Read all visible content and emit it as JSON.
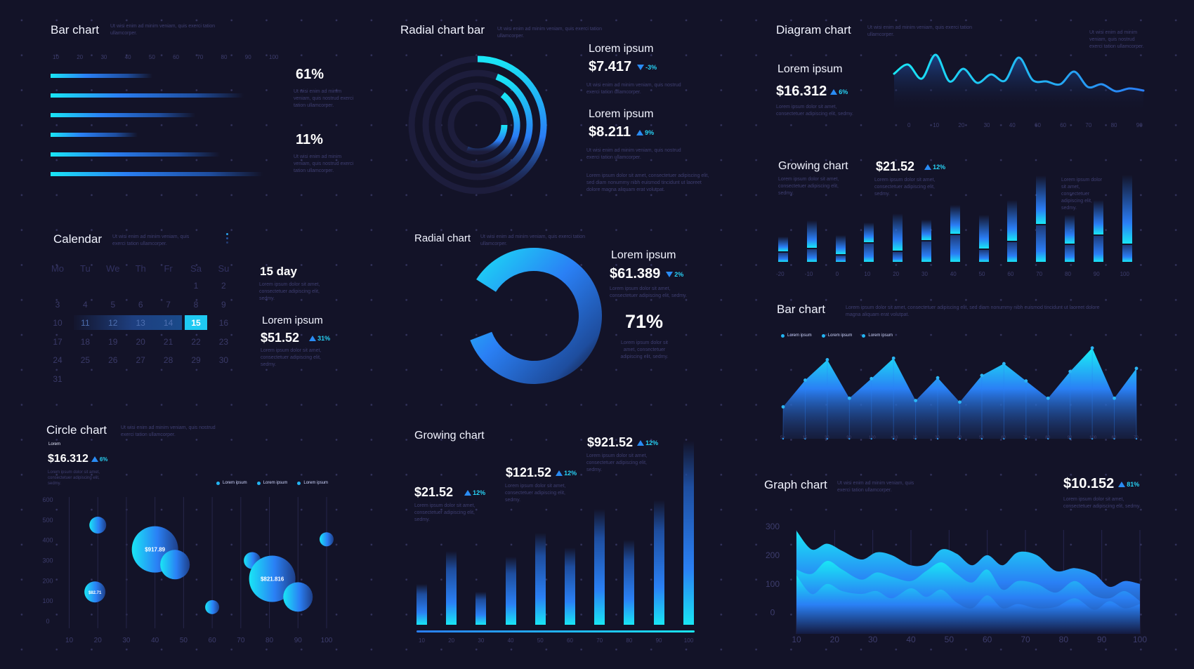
{
  "palette": {
    "background": "#131328",
    "accent_cyan": "#19e6f5",
    "accent_blue": "#2a7df5",
    "muted_text": "#3f3f72",
    "axis_text": "#3d3d6d"
  },
  "panels": {
    "bar_chart_left": {
      "title": "Bar chart",
      "description": "Ut wisi enim ad minim veniam, quis exerci tation ullamcorper.",
      "stat1": {
        "value": "61%",
        "description": "Ut wisi enim ad minim veniam, quis nostrud exerci tation ullamcorper."
      },
      "stat2": {
        "value": "11%",
        "description": "Ut wisi enim ad minim veniam, quis nostrud exerci tation ullamcorper."
      }
    },
    "radial_chart_bar": {
      "title": "Radial chart bar",
      "description": "Ut wisi enim ad minim veniam, quis exerci tation ullamcorper.",
      "stat1": {
        "label": "Lorem ipsum",
        "value": "$7.417",
        "delta": "-3%",
        "direction": "down",
        "description": "Ut wisi enim ad minim veniam, quis nostrud exerci tation ullamcorper."
      },
      "stat2": {
        "label": "Lorem ipsum",
        "value": "$8.211",
        "delta": "9%",
        "direction": "up",
        "description": "Ut wisi enim ad minim veniam, quis nostrud exerci tation ullamcorper."
      },
      "footer": "Lorem ipsum dolor sit amet, consectetuer adipiscing elit, sed diam nonummy nibh euismod tincidunt ut laoreet dolore magna aliquam erat volutpat."
    },
    "diagram_chart": {
      "title": "Diagram chart",
      "description": "Ut wisi enim ad minim veniam, quis exerci tation ullamcorper.",
      "side_note": "Ut wisi enim ad minim veniam, quis nostrud exerci tation ullamcorper.",
      "stat": {
        "label": "Lorem ipsum",
        "value": "$16.312",
        "delta": "6%",
        "direction": "up",
        "description": "Lorem ipsum dolor sit amet, consectetuer adipiscing elit, sedmy."
      }
    },
    "calendar": {
      "title": "Calendar",
      "description": "Ut wisi enim ad minim veniam, quis exerci tation ullamcorper.",
      "weekdays": [
        "Mo",
        "Tu",
        "We",
        "Th",
        "Fr",
        "Sa",
        "Su"
      ],
      "weeks": [
        [
          "",
          "",
          "",
          "",
          "",
          "1",
          "2"
        ],
        [
          "3",
          "4",
          "5",
          "6",
          "7",
          "8",
          "9"
        ],
        [
          "10",
          "11",
          "12",
          "13",
          "14",
          "15",
          "16"
        ],
        [
          "17",
          "18",
          "19",
          "20",
          "21",
          "22",
          "23"
        ],
        [
          "24",
          "25",
          "26",
          "27",
          "28",
          "29",
          "30"
        ],
        [
          "31",
          "",
          "",
          "",
          "",
          "",
          ""
        ]
      ],
      "range_start": "11",
      "selected_day": "15",
      "day_stat": {
        "value": "15 day",
        "description": "Lorem ipsum dolor sit amet, consectetuer adipiscing elit, sedmy."
      },
      "stat": {
        "label": "Lorem ipsum",
        "value": "$51.52",
        "delta": "31%",
        "direction": "up",
        "description": "Lorem ipsum dolor sit amet, consectetuer adipiscing elit, sedmy."
      }
    },
    "radial_chart": {
      "title": "Radial chart",
      "description": "Ut wisi enim ad minim veniam, quis exerci tation ullamcorper.",
      "stat": {
        "label": "Lorem ipsum",
        "value": "$61.389",
        "delta": "2%",
        "direction": "down",
        "description": "Lorem ipsum dolor sit amet, consectetuer adipiscing elit, sedmy."
      },
      "percent": {
        "value": "71%",
        "description": "Lorem ipsum dolor sit amet, consectetuer adipiscing elit, sedmy."
      }
    },
    "growing_chart_right": {
      "title": "Growing chart",
      "description": "Lorem ipsum dolor sit amet, consectetuer adipiscing elit, sedmy.",
      "stat": {
        "value": "$21.52",
        "delta": "12%",
        "direction": "up",
        "description": "Lorem ipsum dolor sit amet, consectetuer adipiscing elit, sedmy."
      },
      "side_note": "Lorem ipsum dolor sit amet, consectetuer adipiscing elit, sedmy."
    },
    "bar_chart_right": {
      "title": "Bar chart",
      "description": "Lorem ipsum dolor sit amet, consectetuer adipiscing elit, sed diam nonummy nibh euismod tincidunt ut laoreet dolore magna aliquam erat volutpat.",
      "legend": [
        "Lorem ipsum",
        "Lorem ipsum",
        "Lorem ipsum"
      ]
    },
    "circle_chart": {
      "title": "Circle chart",
      "description": "Ut wisi enim ad minim veniam, quis nostrud exerci tation ullamcorper.",
      "stat": {
        "label": "Lorem",
        "value": "$16.312",
        "delta": "6%",
        "direction": "up",
        "description": "Lorem ipsum dolor sit amet, consectetuer adipiscing elit, sedmy."
      },
      "legend": [
        "Lorem ipsum",
        "Lorem ipsum",
        "Lorem ipsum"
      ]
    },
    "growing_chart_mid": {
      "title": "Growing chart",
      "stats": [
        {
          "value": "$21.52",
          "delta": "12%",
          "direction": "up",
          "description": "Lorem ipsum dolor sit amet, consectetuer adipiscing elit, sedmy."
        },
        {
          "value": "$121.52",
          "delta": "12%",
          "direction": "up",
          "description": "Lorem ipsum dolor sit amet, consectetuer adipiscing elit, sedmy."
        },
        {
          "value": "$921.52",
          "delta": "12%",
          "direction": "up",
          "description": "Lorem ipsum dolor sit amet, consectetuer adipiscing elit, sedmy."
        }
      ]
    },
    "graph_chart": {
      "title": "Graph chart",
      "description": "Ut wisi enim ad minim veniam, quis exerci tation ullamcorper.",
      "stat": {
        "value": "$10.152",
        "delta": "81%",
        "direction": "up",
        "description": "Lorem ipsum dolor sit amet, consectetuer adipiscing elit, sedmy."
      }
    }
  },
  "chart_data": [
    {
      "id": "bar_chart_left",
      "type": "bar",
      "orientation": "horizontal",
      "xticks": [
        "10",
        "20",
        "30",
        "40",
        "50",
        "60",
        "70",
        "80",
        "90",
        "100"
      ],
      "xlim": [
        10,
        100
      ],
      "values": [
        50,
        88,
        68,
        44,
        78,
        96
      ]
    },
    {
      "id": "radial_chart_bar",
      "type": "radial-bar",
      "rings": [
        {
          "name": "outer",
          "value_pct": 30
        },
        {
          "name": "ring2",
          "value_pct": 30
        },
        {
          "name": "ring3",
          "value_pct": 32
        },
        {
          "name": "inner",
          "value_pct": 35
        }
      ]
    },
    {
      "id": "diagram_chart",
      "type": "area",
      "xticks": [
        "0",
        "10",
        "20",
        "30",
        "40",
        "60",
        "60",
        "70",
        "80",
        "90"
      ],
      "x": [
        0,
        5,
        10,
        15,
        20,
        25,
        30,
        35,
        40,
        45,
        50,
        55,
        60,
        65,
        70,
        75,
        80,
        85,
        90
      ],
      "y": [
        55,
        68,
        48,
        82,
        44,
        62,
        42,
        54,
        45,
        78,
        46,
        44,
        40,
        58,
        36,
        40,
        30,
        34,
        31
      ],
      "ylim": [
        0,
        100
      ]
    },
    {
      "id": "radial_chart",
      "type": "pie",
      "value_pct": 71
    },
    {
      "id": "growing_chart_right",
      "type": "bar",
      "style": "stacked-split",
      "categories": [
        "-20",
        "-10",
        "0",
        "10",
        "20",
        "30",
        "40",
        "50",
        "60",
        "70",
        "80",
        "90",
        "100"
      ],
      "series": [
        {
          "name": "total",
          "values": [
            28,
            46,
            30,
            44,
            54,
            47,
            63,
            52,
            69,
            96,
            52,
            69,
            97
          ]
        },
        {
          "name": "lower",
          "values": [
            10,
            14,
            7,
            20,
            11,
            23,
            30,
            13,
            22,
            41,
            19,
            29,
            19
          ]
        }
      ],
      "ylim": [
        0,
        100
      ]
    },
    {
      "id": "bar_chart_right",
      "type": "area",
      "xticks": [
        "5+",
        "15",
        "30",
        "90",
        "100",
        "+10",
        "20",
        "30",
        "40",
        "50",
        "60",
        "70+",
        "80",
        "90",
        "100",
        "60",
        "70"
      ],
      "y": [
        25,
        59,
        85,
        36,
        61,
        87,
        33,
        62,
        31,
        65,
        80,
        58,
        36,
        70,
        100,
        36,
        74
      ],
      "ylim": [
        0,
        110
      ],
      "legend": [
        "Lorem ipsum",
        "Lorem ipsum",
        "Lorem ipsum"
      ],
      "legend_position": "top-left"
    },
    {
      "id": "circle_chart",
      "type": "scatter",
      "style": "bubble",
      "xticks": [
        "10",
        "20",
        "30",
        "40",
        "50",
        "60",
        "70",
        "80",
        "90",
        "100"
      ],
      "yticks": [
        "0",
        "100",
        "200",
        "300",
        "400",
        "500",
        "600"
      ],
      "xlim": [
        10,
        100
      ],
      "ylim": [
        0,
        600
      ],
      "points": [
        {
          "x": 20,
          "y": 475,
          "r": 12,
          "label": ""
        },
        {
          "x": 19,
          "y": 145,
          "r": 15,
          "label": "$82.71"
        },
        {
          "x": 40,
          "y": 355,
          "r": 33,
          "label": "$917.89"
        },
        {
          "x": 47,
          "y": 280,
          "r": 21,
          "label": ""
        },
        {
          "x": 60,
          "y": 70,
          "r": 10,
          "label": ""
        },
        {
          "x": 74,
          "y": 300,
          "r": 12,
          "label": ""
        },
        {
          "x": 81,
          "y": 210,
          "r": 33,
          "label": "$821.816"
        },
        {
          "x": 90,
          "y": 120,
          "r": 21,
          "label": ""
        },
        {
          "x": 100,
          "y": 405,
          "r": 10,
          "label": ""
        }
      ],
      "legend": [
        "Lorem ipsum",
        "Lorem ipsum",
        "Lorem ipsum"
      ]
    },
    {
      "id": "growing_chart_mid",
      "type": "bar",
      "categories": [
        "10",
        "20",
        "30",
        "40",
        "50",
        "60",
        "70",
        "80",
        "90",
        "100"
      ],
      "values": [
        22,
        40,
        18,
        37,
        50,
        42,
        63,
        46,
        68,
        100
      ],
      "ylim": [
        0,
        100
      ]
    },
    {
      "id": "graph_chart",
      "type": "area",
      "style": "stacked-waves",
      "xticks": [
        "10",
        "20",
        "30",
        "40",
        "50",
        "60",
        "70",
        "80",
        "90",
        "100"
      ],
      "yticks": [
        "0",
        "100",
        "200",
        "300"
      ],
      "xlim": [
        10,
        100
      ],
      "ylim": [
        -30,
        300
      ],
      "x": [
        10,
        14,
        18,
        22,
        27,
        31,
        35,
        40,
        44,
        48,
        52,
        56,
        60,
        64,
        68,
        73,
        78,
        83,
        88,
        92,
        96,
        100
      ],
      "series": [
        {
          "name": "top",
          "y": [
            285,
            220,
            240,
            215,
            185,
            210,
            200,
            165,
            170,
            220,
            205,
            165,
            200,
            165,
            210,
            200,
            145,
            155,
            135,
            90,
            110,
            100
          ]
        },
        {
          "name": "middle",
          "y": [
            150,
            135,
            180,
            150,
            115,
            140,
            125,
            110,
            145,
            175,
            135,
            105,
            150,
            80,
            110,
            100,
            70,
            110,
            60,
            50,
            75,
            40
          ]
        },
        {
          "name": "bottom",
          "y": [
            130,
            65,
            100,
            75,
            65,
            75,
            50,
            85,
            55,
            80,
            35,
            15,
            60,
            15,
            30,
            15,
            20,
            50,
            10,
            40,
            15,
            30
          ]
        }
      ]
    }
  ]
}
